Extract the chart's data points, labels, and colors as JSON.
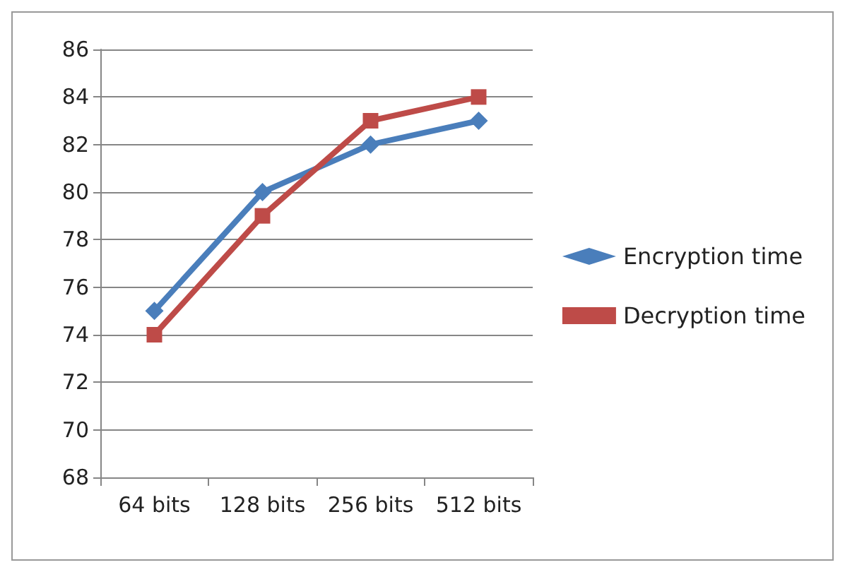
{
  "chart_data": {
    "type": "line",
    "categories": [
      "64 bits",
      "128 bits",
      "256 bits",
      "512 bits"
    ],
    "series": [
      {
        "name": "Encryption time",
        "color": "#4a7ebb",
        "marker": "diamond",
        "values": [
          75,
          80,
          82,
          83
        ]
      },
      {
        "name": "Decryption time",
        "color": "#be4b48",
        "marker": "square",
        "values": [
          74,
          79,
          83,
          84
        ]
      }
    ],
    "ylim": [
      68,
      86
    ],
    "yticks": [
      68,
      70,
      72,
      74,
      76,
      78,
      80,
      82,
      84,
      86
    ],
    "grid": "y",
    "legend": "right"
  }
}
